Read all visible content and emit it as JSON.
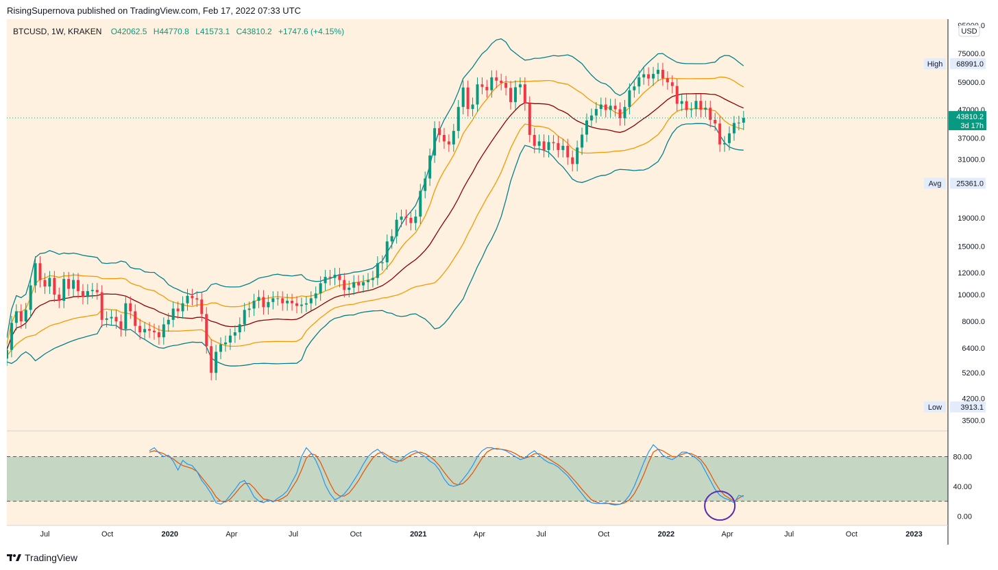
{
  "header": {
    "published": "RisingSupernova published on TradingView.com, Feb 17, 2022 07:33 UTC"
  },
  "footer": {
    "brand": "TradingView"
  },
  "colors": {
    "up": "#089981",
    "down": "#f23645",
    "background": "#fff1df",
    "bb_outer": "#00808f",
    "bb_inner": "#f59a00",
    "basis": "#8b0000",
    "stoch_k": "#2196f3",
    "stoch_d": "#e65100",
    "band_fill": "#c5d6c3",
    "circle": "#5b2ab5"
  },
  "chart_data": {
    "type": "candlestick",
    "symbol_line": {
      "symbol": "BTCUSD, 1W, KRAKEN",
      "o_label": "O",
      "o": "42062.5",
      "h_label": "H",
      "h": "44770.8",
      "l_label": "L",
      "l": "41573.1",
      "c_label": "C",
      "c": "43810.2",
      "change": "+1747.6 (+4.15%)"
    },
    "currency": "USD",
    "price_scale": "log",
    "price_ticks": [
      "95000.0",
      "75000.0",
      "59000.0",
      "47000.0",
      "37000.0",
      "31000.0",
      "19000.0",
      "15000.0",
      "12000.0",
      "10000.0",
      "8000.0",
      "6400.0",
      "5200.0",
      "4200.0",
      "3500.0"
    ],
    "markers": {
      "high": {
        "label": "High",
        "value": "68991.0"
      },
      "low": {
        "label": "Low",
        "value": "3913.1"
      },
      "avg": {
        "label": "Avg",
        "value": "25361.0"
      },
      "last": {
        "value": "43810.2",
        "countdown": "3d 17h"
      }
    },
    "time_labels": [
      {
        "text": "Jul",
        "date": "2019-07-01"
      },
      {
        "text": "Oct",
        "date": "2019-10-01"
      },
      {
        "text": "2020",
        "date": "2020-01-01"
      },
      {
        "text": "Apr",
        "date": "2020-04-01"
      },
      {
        "text": "Jul",
        "date": "2020-07-01"
      },
      {
        "text": "Oct",
        "date": "2020-10-01"
      },
      {
        "text": "2021",
        "date": "2021-01-01"
      },
      {
        "text": "Apr",
        "date": "2021-04-01"
      },
      {
        "text": "Jul",
        "date": "2021-07-01"
      },
      {
        "text": "Oct",
        "date": "2021-10-01"
      },
      {
        "text": "2022",
        "date": "2022-01-01"
      },
      {
        "text": "Apr",
        "date": "2022-04-01"
      },
      {
        "text": "Jul",
        "date": "2022-07-01"
      },
      {
        "text": "Oct",
        "date": "2022-10-01"
      },
      {
        "text": "2023",
        "date": "2023-01-01"
      }
    ],
    "x_range": [
      "2019-05-06",
      "2023-02-20"
    ],
    "y_range": [
      3200,
      100000
    ],
    "weekly_closes_start": "2019-05-06",
    "weekly_closes": [
      6300,
      7900,
      8700,
      8000,
      8800,
      10800,
      13000,
      11300,
      10700,
      11500,
      10000,
      9500,
      11400,
      10500,
      11300,
      10300,
      9800,
      10300,
      10400,
      10200,
      8100,
      8200,
      8300,
      8000,
      7500,
      9300,
      8700,
      7700,
      7300,
      7500,
      7400,
      7300,
      7000,
      7800,
      8100,
      8900,
      8700,
      9300,
      9900,
      9700,
      9600,
      8500,
      6500,
      5200,
      6200,
      6600,
      6700,
      7100,
      7300,
      7800,
      8800,
      8900,
      9500,
      9800,
      9000,
      9400,
      9700,
      9700,
      9300,
      9500,
      9300,
      9100,
      9200,
      9300,
      9700,
      10100,
      11000,
      11600,
      11500,
      11800,
      11300,
      10400,
      10600,
      11100,
      10800,
      11100,
      11300,
      11500,
      13000,
      13100,
      15600,
      16300,
      18700,
      19200,
      19000,
      18200,
      19200,
      23800,
      26400,
      32000,
      40200,
      38000,
      36000,
      35100,
      39300,
      48000,
      56500,
      47200,
      49000,
      58000,
      56800,
      55200,
      61500,
      59800,
      58700,
      56300,
      50000,
      56600,
      58000,
      49500,
      38000,
      34700,
      36000,
      33500,
      35800,
      35500,
      33500,
      34700,
      31500,
      29800,
      34200,
      38100,
      42900,
      44700,
      47200,
      49000,
      46800,
      48500,
      47100,
      43700,
      48000,
      55200,
      57000,
      61500,
      63100,
      60900,
      63300,
      65500,
      61000,
      59000,
      57200,
      49300,
      50400,
      46800,
      47100,
      50500,
      46900,
      47700,
      43100,
      41800,
      35100,
      35500,
      38500,
      42000,
      42100,
      43810
    ],
    "series": [
      {
        "name": "%K",
        "values": [
          88,
          92,
          85,
          80,
          82,
          74,
          62,
          75,
          70,
          68,
          60,
          48,
          40,
          30,
          18,
          16,
          20,
          28,
          36,
          45,
          48,
          38,
          26,
          20,
          18,
          22,
          19,
          24,
          28,
          34,
          46,
          58,
          80,
          92,
          85,
          75,
          60,
          42,
          30,
          22,
          25,
          30,
          38,
          48,
          58,
          70,
          80,
          86,
          90,
          84,
          78,
          74,
          72,
          76,
          82,
          86,
          88,
          84,
          80,
          74,
          70,
          62,
          50,
          42,
          40,
          42,
          50,
          58,
          68,
          80,
          88,
          92,
          92,
          90,
          90,
          88,
          84,
          80,
          76,
          78,
          84,
          88,
          82,
          76,
          72,
          70,
          66,
          60,
          54,
          46,
          38,
          30,
          22,
          18,
          17,
          17,
          18,
          16,
          15,
          16,
          20,
          28,
          40,
          56,
          72,
          86,
          96,
          90,
          82,
          78,
          76,
          80,
          86,
          86,
          82,
          78,
          72,
          60,
          48,
          36,
          28,
          24,
          22,
          18,
          28,
          26
        ],
        "source_note_free": true
      },
      {
        "name": "%D",
        "values": [
          86,
          88,
          86,
          84,
          80,
          77,
          72,
          68,
          66,
          64,
          60,
          52,
          44,
          36,
          26,
          20,
          19,
          23,
          30,
          38,
          44,
          44,
          38,
          30,
          23,
          22,
          20,
          21,
          24,
          28,
          38,
          48,
          62,
          78,
          84,
          82,
          72,
          58,
          44,
          32,
          27,
          27,
          31,
          39,
          48,
          59,
          69,
          78,
          84,
          86,
          82,
          78,
          75,
          74,
          78,
          82,
          85,
          86,
          84,
          80,
          75,
          68,
          59,
          51,
          44,
          42,
          44,
          50,
          58,
          68,
          78,
          86,
          90,
          91,
          90,
          89,
          87,
          84,
          80,
          78,
          80,
          84,
          84,
          81,
          77,
          73,
          69,
          64,
          58,
          51,
          44,
          36,
          29,
          22,
          19,
          17,
          17,
          17,
          16,
          16,
          18,
          22,
          30,
          42,
          56,
          72,
          86,
          90,
          88,
          84,
          80,
          80,
          83,
          85,
          84,
          81,
          76,
          68,
          57,
          45,
          35,
          28,
          24,
          20,
          24,
          28
        ]
      }
    ],
    "stoch_ticks": [
      "80.00",
      "40.00",
      "0.00"
    ],
    "stoch_range": [
      -8,
      110
    ],
    "stoch_bands": [
      80,
      20
    ]
  }
}
